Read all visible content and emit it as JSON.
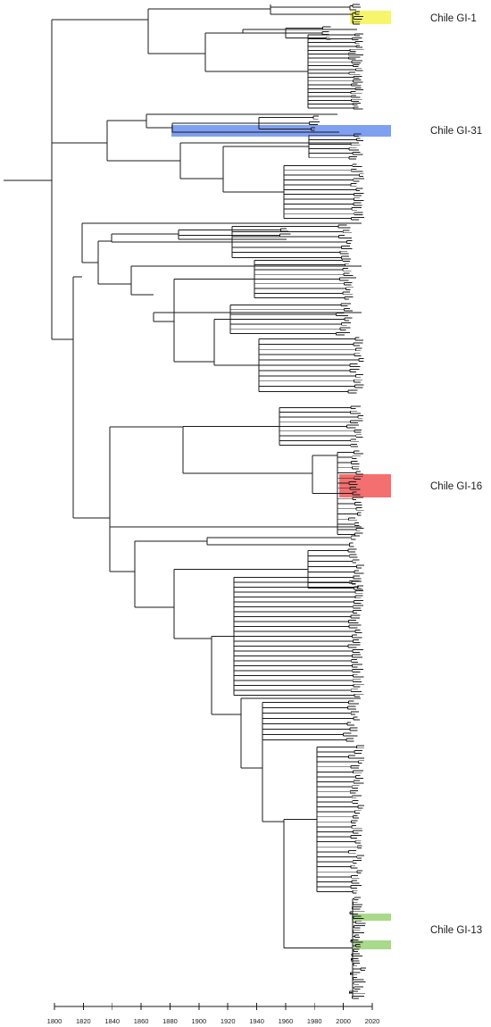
{
  "tree_figure": {
    "clades": [
      {
        "label": "Chile GI-1",
        "color": "#f7f56b"
      },
      {
        "label": "Chile GI-31",
        "color": "#7f9ff0"
      },
      {
        "label": "Chile GI-16",
        "color": "#f46f6f"
      },
      {
        "label": "Chile GI-13",
        "color": "#a9d98a"
      }
    ],
    "time_axis": {
      "min": 1800,
      "max": 2020,
      "ticks": [
        "1800",
        "1820",
        "1840",
        "1860",
        "1880",
        "1900",
        "1920",
        "1940",
        "1960",
        "1980",
        "2000",
        "2020"
      ]
    }
  }
}
